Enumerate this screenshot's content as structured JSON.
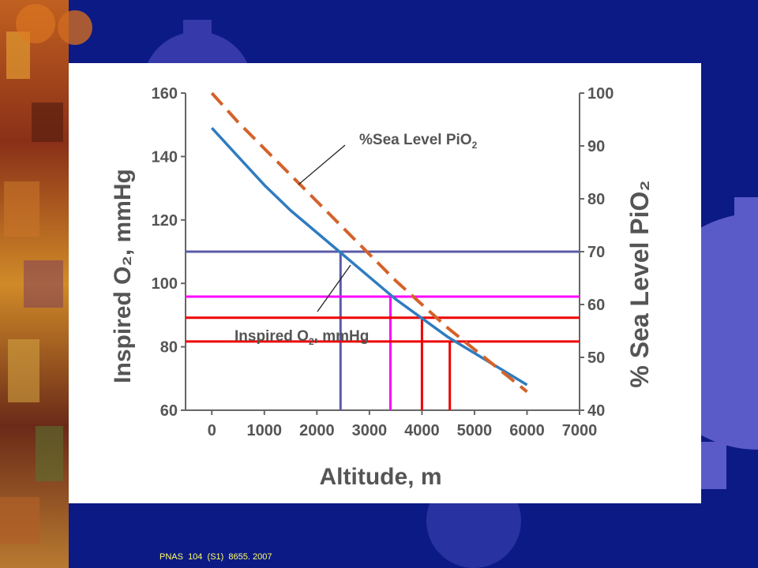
{
  "slide": {
    "citation": "PNAS  104  (S1)  8655. 2007",
    "background_color": "#0c1a86",
    "left_strip": "autumn-texture",
    "decoration": "gear-shapes"
  },
  "chart_data": {
    "type": "line",
    "xlabel": "Altitude, m",
    "ylabel_left": "Inspired O₂, mmHg",
    "ylabel_right": "% Sea Level PiO₂",
    "xlim": [
      -500,
      7000
    ],
    "ylim_left": [
      60,
      160
    ],
    "ylim_right": [
      40,
      100
    ],
    "x_ticks": [
      0,
      1000,
      2000,
      3000,
      4000,
      5000,
      6000,
      7000
    ],
    "y_ticks_left": [
      60,
      80,
      100,
      120,
      140,
      160
    ],
    "y_ticks_right": [
      40,
      50,
      60,
      70,
      80,
      90,
      100
    ],
    "grid": false,
    "series": [
      {
        "name": "Inspired O₂, mmHg",
        "axis": "left",
        "style": "solid",
        "color": "#2f7cc0",
        "x": [
          0,
          500,
          1000,
          1500,
          2000,
          2500,
          3000,
          3500,
          4000,
          4500,
          5000,
          5500,
          6000
        ],
        "y": [
          149,
          140,
          131,
          123,
          116,
          109,
          102,
          95,
          89,
          83,
          78,
          73,
          68
        ]
      },
      {
        "name": "%Sea Level PiO₂",
        "axis": "right",
        "style": "dashed",
        "color": "#d4622a",
        "x": [
          0,
          500,
          1000,
          1500,
          2000,
          2500,
          3000,
          3500,
          4000,
          4500,
          5000,
          5500,
          6000
        ],
        "y": [
          100,
          94.5,
          89.5,
          84.5,
          79.5,
          74.5,
          69.5,
          64.5,
          60,
          55.5,
          51.5,
          47.5,
          43.5
        ]
      }
    ],
    "annotations": [
      {
        "text_main": "%Sea Level PiO",
        "text_sub": "2"
      },
      {
        "text_main": "Inspired O",
        "text_sub": "2",
        "text_tail": ", mmHg"
      }
    ],
    "reference_lines": [
      {
        "color": "#5a5aaa",
        "y_right": 70,
        "x": 2450
      },
      {
        "color": "#ff00ff",
        "y_right": 61.5,
        "x": 3400
      },
      {
        "color": "#ee0000",
        "y_right": 57.5,
        "x": 4000
      },
      {
        "color": "#ee0000",
        "y_right": 53,
        "x": 4530
      }
    ]
  }
}
